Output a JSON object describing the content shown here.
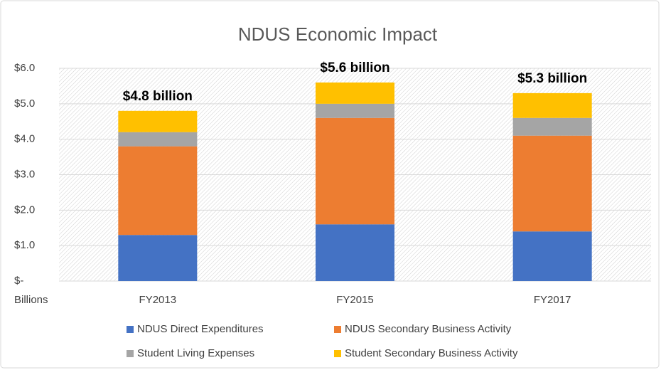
{
  "chart_data": {
    "type": "stacked_bar",
    "title": "NDUS Economic Impact",
    "y_label": "Billions",
    "categories": [
      "FY2013",
      "FY2015",
      "FY2017"
    ],
    "series": [
      {
        "name": "NDUS Direct Expenditures",
        "color": "#4472c4",
        "values": [
          1.3,
          1.6,
          1.4
        ]
      },
      {
        "name": "NDUS Secondary Business Activity",
        "color": "#ed7d31",
        "values": [
          2.5,
          3.0,
          2.7
        ]
      },
      {
        "name": "Student Living Expenses",
        "color": "#a5a5a5",
        "values": [
          0.4,
          0.4,
          0.5
        ]
      },
      {
        "name": "Student Secondary Business Activity",
        "color": "#ffc000",
        "values": [
          0.6,
          0.6,
          0.7
        ]
      }
    ],
    "annotations": [
      "$4.8 billion",
      "$5.6 billion",
      "$5.3 billion"
    ],
    "ylim": [
      0,
      6
    ],
    "yticks": [
      {
        "value": 0,
        "label": "$-"
      },
      {
        "value": 1,
        "label": "$1.0"
      },
      {
        "value": 2,
        "label": "$2.0"
      },
      {
        "value": 3,
        "label": "$3.0"
      },
      {
        "value": 4,
        "label": "$4.0"
      },
      {
        "value": 5,
        "label": "$5.0"
      },
      {
        "value": 6,
        "label": "$6.0"
      }
    ],
    "grid": true
  }
}
